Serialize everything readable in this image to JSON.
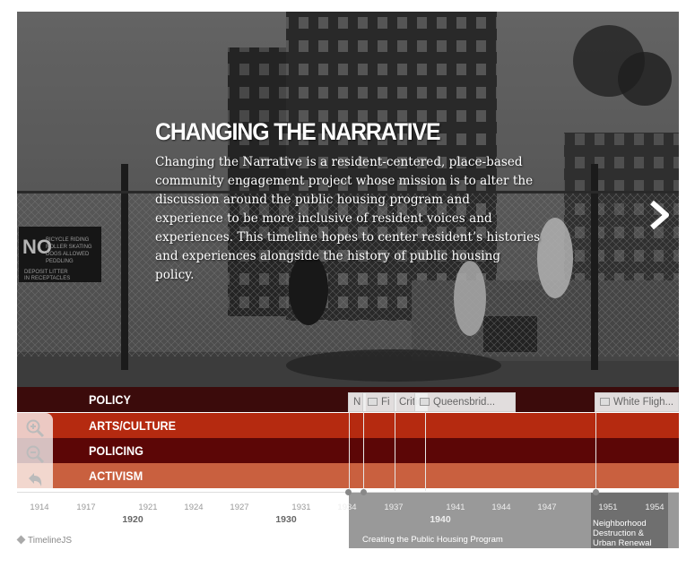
{
  "slide": {
    "title": "CHANGING THE NARRATIVE",
    "body": "Changing the Narrative is a resident-centered, place-based community engagement project whose mission is to alter the discussion around the public housing program and experience to be more inclusive of resident voices and experiences. This timeline hopes to center resident’s histories and experiences alongside the history of public housing policy.",
    "sign_lines": [
      "NO",
      "BICYCLE RIDING",
      "ROLLER SKATING",
      "DOGS ALLOWED",
      "PEDDLING",
      "DEPOSIT LITTER",
      "IN RECEPTACLES"
    ]
  },
  "bands": [
    {
      "label": "POLICY",
      "color": "#3b0b0b"
    },
    {
      "label": "ARTS/CULTURE",
      "color": "#b52a10"
    },
    {
      "label": "POLICING",
      "color": "#5c0606"
    },
    {
      "label": "ACTIVISM",
      "color": "#c9603f"
    }
  ],
  "markers": [
    {
      "label": "N"
    },
    {
      "label": "Fi"
    },
    {
      "label": "Critic"
    },
    {
      "label": "Queensbrid..."
    },
    {
      "label": "White Fligh..."
    }
  ],
  "axis": {
    "minor_ticks": [
      "1914",
      "1917",
      "1921",
      "1924",
      "1927",
      "1931",
      "1934",
      "1937",
      "1941",
      "1944",
      "1947",
      "1951",
      "1954"
    ],
    "major_ticks": [
      "1920",
      "1930",
      "1940"
    ]
  },
  "eras": [
    {
      "label": "Creating the Public Housing Program"
    },
    {
      "label": "Neighborhood Destruction & Urban Renewal",
      "lines": [
        "Neighborhood",
        "Destruction &",
        "Urban Renewal"
      ]
    }
  ],
  "attribution": "TimelineJS",
  "icons": {
    "next": "chevron-right-icon",
    "zoom_in": "zoom-in-icon",
    "zoom_out": "zoom-out-icon",
    "back": "back-arrow-icon",
    "attribution": "diamond-icon"
  }
}
